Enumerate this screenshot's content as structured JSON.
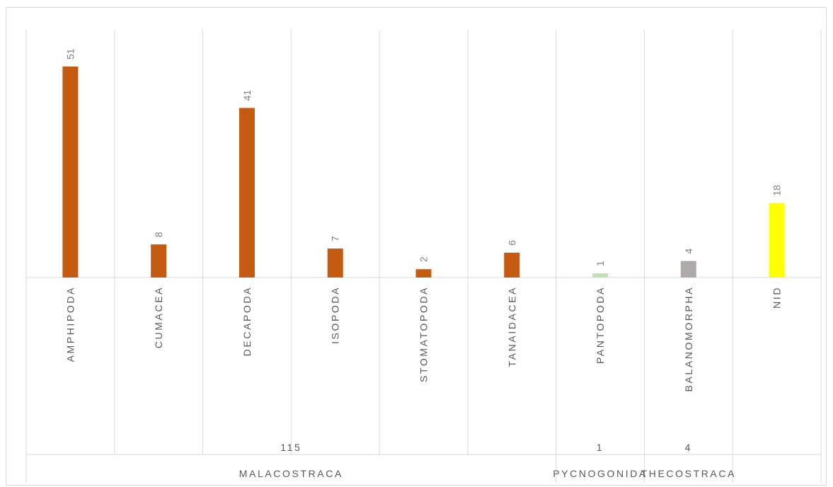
{
  "chart_data": {
    "type": "bar",
    "categories": [
      "AMPHIPODA",
      "CUMACEA",
      "DECAPODA",
      "ISOPODA",
      "STOMATOPODA",
      "TANAIDACEA",
      "PANTOPODA",
      "BALANOMORPHA",
      "NID"
    ],
    "values": [
      51,
      8,
      41,
      7,
      2,
      6,
      1,
      4,
      18
    ],
    "bar_colors": [
      "#c55a11",
      "#c55a11",
      "#c55a11",
      "#c55a11",
      "#c55a11",
      "#c55a11",
      "#c5e0b4",
      "#aeaaaa",
      "#ffff00"
    ],
    "data_labels": [
      "51",
      "8",
      "41",
      "7",
      "2",
      "6",
      "1",
      "4",
      "18"
    ],
    "groups": [
      {
        "name": "MALACOSTRACA",
        "total": "115",
        "span": [
          0,
          5
        ]
      },
      {
        "name": "PYCNOGONIDA",
        "total": "1",
        "span": [
          6,
          6
        ]
      },
      {
        "name": "THECOSTRACA",
        "total": "4",
        "span": [
          7,
          7
        ]
      },
      {
        "name": "",
        "total": "",
        "span": [
          8,
          8
        ]
      }
    ],
    "ylim": [
      0,
      55
    ],
    "grid": false,
    "legend": "none",
    "title": "",
    "xlabel": "",
    "ylabel": ""
  }
}
